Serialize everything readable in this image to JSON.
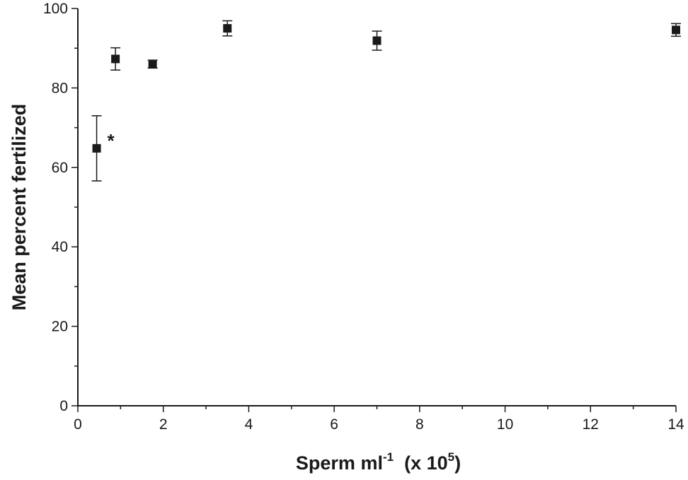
{
  "chart_data": {
    "type": "scatter",
    "title": "",
    "xlabel": {
      "parts": [
        {
          "text": "Sperm ml",
          "sup": false
        },
        {
          "text": "-1",
          "sup": true
        },
        {
          "text": "  (x 10",
          "sup": false
        },
        {
          "text": "5",
          "sup": true
        },
        {
          "text": ")",
          "sup": false
        }
      ]
    },
    "ylabel": "Mean percent fertilized",
    "xlim": [
      0,
      14
    ],
    "ylim": [
      0,
      100
    ],
    "xticks": [
      0,
      2,
      4,
      6,
      8,
      10,
      12,
      14
    ],
    "yticks": [
      0,
      20,
      40,
      60,
      80,
      100
    ],
    "grid": false,
    "legend": "none",
    "marker": "filled-square",
    "color": "#1a1a1a",
    "series": [
      {
        "points": [
          {
            "x": 0.44,
            "y": 64.8,
            "err": 8.2
          },
          {
            "x": 0.88,
            "y": 87.3,
            "err": 2.8
          },
          {
            "x": 1.75,
            "y": 86.0,
            "err": 1.0
          },
          {
            "x": 3.5,
            "y": 95.0,
            "err": 1.9
          },
          {
            "x": 7.0,
            "y": 91.9,
            "err": 2.4
          },
          {
            "x": 14.0,
            "y": 94.6,
            "err": 1.6
          }
        ]
      }
    ],
    "annotations": [
      {
        "text": "*",
        "x": 0.44,
        "y": 64.8
      }
    ]
  }
}
